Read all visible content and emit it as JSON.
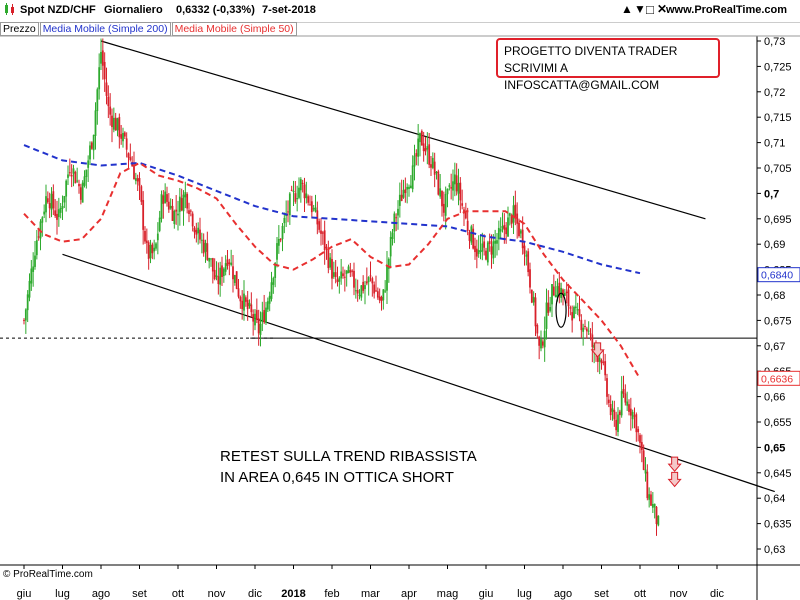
{
  "header": {
    "candle_icon": "candlestick-icon",
    "symbol": "Spot NZD/CHF",
    "period": "Giornaliero",
    "last": "0,6332 (-0,33%)",
    "date": "7-set-2018",
    "toolbar_icons": [
      "up-arrow-icon",
      "down-arrow-icon",
      "maximize-icon",
      "close-icon"
    ],
    "site": "www.ProRealTime.com"
  },
  "legend": {
    "price": "Prezzo",
    "ma200": "Media Mobile (Simple 200)",
    "ma50": "Media Mobile (Simple 50)"
  },
  "annotation_box": {
    "line1": "PROGETTO DIVENTA TRADER",
    "line2": "SCRIVIMI A INFOSCATTA@GMAIL.COM"
  },
  "note": {
    "line1": "RETEST SULLA TREND RIBASSISTA",
    "line2": "IN AREA 0,645 IN OTTICA SHORT"
  },
  "footer": "© ProRealTime.com",
  "colors": {
    "up": "#2eaa2e",
    "down": "#d8202a",
    "ma200": "#2233cc",
    "ma50": "#e83030",
    "box_border": "#e0202a"
  },
  "chart_data": {
    "type": "candlestick",
    "x_axis": {
      "labels": [
        "giu",
        "lug",
        "ago",
        "set",
        "ott",
        "nov",
        "dic",
        "2018",
        "feb",
        "mar",
        "apr",
        "mag",
        "giu",
        "lug",
        "ago",
        "set",
        "ott",
        "nov",
        "dic"
      ],
      "label_months": [
        0,
        1,
        2,
        3,
        4,
        5,
        6,
        7,
        8,
        9,
        10,
        11,
        12,
        13,
        14,
        15,
        16,
        17,
        18
      ],
      "note": "months counted from June 2017"
    },
    "y_axis": {
      "ticks": [
        "0,73",
        "0,725",
        "0,72",
        "0,715",
        "0,71",
        "0,705",
        "0,7",
        "0,695",
        "0,69",
        "0,685",
        "0,68",
        "0,675",
        "0,67",
        "0,665",
        "0,66",
        "0,655",
        "0,65",
        "0,645",
        "0,64",
        "0,635",
        "0,63"
      ],
      "tick_values": [
        0.73,
        0.725,
        0.72,
        0.715,
        0.71,
        0.705,
        0.7,
        0.695,
        0.69,
        0.685,
        0.68,
        0.675,
        0.67,
        0.665,
        0.66,
        0.655,
        0.65,
        0.645,
        0.64,
        0.635,
        0.63
      ],
      "bold_ticks": [
        "0,7",
        "0,65"
      ],
      "range": [
        0.6265,
        0.7325
      ],
      "price_labels": [
        {
          "text": "0,6840",
          "value": 0.684,
          "color": "#2233cc"
        },
        {
          "text": "0,6636",
          "value": 0.6636,
          "color": "#e83030"
        }
      ]
    },
    "price_path": [
      [
        0.0,
        0.675
      ],
      [
        0.3,
        0.69
      ],
      [
        0.6,
        0.7
      ],
      [
        0.9,
        0.695
      ],
      [
        1.2,
        0.706
      ],
      [
        1.5,
        0.7
      ],
      [
        1.8,
        0.712
      ],
      [
        2.0,
        0.728
      ],
      [
        2.2,
        0.716
      ],
      [
        2.5,
        0.712
      ],
      [
        2.8,
        0.706
      ],
      [
        3.0,
        0.7
      ],
      [
        3.2,
        0.688
      ],
      [
        3.4,
        0.688
      ],
      [
        3.6,
        0.7
      ],
      [
        3.9,
        0.696
      ],
      [
        4.2,
        0.7
      ],
      [
        4.5,
        0.692
      ],
      [
        4.8,
        0.688
      ],
      [
        5.0,
        0.682
      ],
      [
        5.3,
        0.688
      ],
      [
        5.6,
        0.68
      ],
      [
        5.9,
        0.676
      ],
      [
        6.1,
        0.673
      ],
      [
        6.3,
        0.678
      ],
      [
        6.6,
        0.69
      ],
      [
        6.9,
        0.698
      ],
      [
        7.2,
        0.702
      ],
      [
        7.5,
        0.697
      ],
      [
        7.8,
        0.69
      ],
      [
        8.1,
        0.682
      ],
      [
        8.4,
        0.684
      ],
      [
        8.7,
        0.681
      ],
      [
        9.0,
        0.683
      ],
      [
        9.3,
        0.678
      ],
      [
        9.6,
        0.694
      ],
      [
        9.9,
        0.702
      ],
      [
        10.1,
        0.704
      ],
      [
        10.3,
        0.711
      ],
      [
        10.6,
        0.706
      ],
      [
        10.9,
        0.697
      ],
      [
        11.2,
        0.703
      ],
      [
        11.5,
        0.694
      ],
      [
        11.8,
        0.688
      ],
      [
        12.1,
        0.689
      ],
      [
        12.4,
        0.692
      ],
      [
        12.7,
        0.696
      ],
      [
        13.0,
        0.69
      ],
      [
        13.2,
        0.68
      ],
      [
        13.4,
        0.668
      ],
      [
        13.6,
        0.678
      ],
      [
        13.8,
        0.682
      ],
      [
        14.1,
        0.679
      ],
      [
        14.3,
        0.676
      ],
      [
        14.6,
        0.674
      ],
      [
        14.8,
        0.669
      ],
      [
        15.0,
        0.668
      ],
      [
        15.1,
        0.662
      ],
      [
        15.2,
        0.658
      ],
      [
        15.35,
        0.654
      ],
      [
        15.55,
        0.66
      ],
      [
        15.75,
        0.658
      ],
      [
        15.9,
        0.655
      ],
      [
        16.05,
        0.648
      ],
      [
        16.2,
        0.641
      ],
      [
        16.35,
        0.638
      ],
      [
        16.5,
        0.634
      ]
    ],
    "ma200": [
      [
        0,
        0.7095
      ],
      [
        1,
        0.7065
      ],
      [
        2,
        0.7055
      ],
      [
        3,
        0.706
      ],
      [
        4,
        0.7035
      ],
      [
        5,
        0.7005
      ],
      [
        6,
        0.6975
      ],
      [
        7,
        0.6955
      ],
      [
        8,
        0.695
      ],
      [
        9,
        0.6945
      ],
      [
        10,
        0.694
      ],
      [
        11,
        0.6935
      ],
      [
        12,
        0.6915
      ],
      [
        13,
        0.6905
      ],
      [
        14,
        0.6885
      ],
      [
        15,
        0.686
      ],
      [
        16,
        0.6843
      ]
    ],
    "ma50": [
      [
        0,
        0.696
      ],
      [
        0.5,
        0.692
      ],
      [
        1,
        0.6905
      ],
      [
        1.5,
        0.691
      ],
      [
        2,
        0.695
      ],
      [
        2.5,
        0.704
      ],
      [
        3,
        0.706
      ],
      [
        3.5,
        0.7035
      ],
      [
        4,
        0.7025
      ],
      [
        4.5,
        0.701
      ],
      [
        5,
        0.699
      ],
      [
        5.5,
        0.694
      ],
      [
        6,
        0.6895
      ],
      [
        6.5,
        0.686
      ],
      [
        7,
        0.685
      ],
      [
        7.5,
        0.687
      ],
      [
        8,
        0.6895
      ],
      [
        8.5,
        0.691
      ],
      [
        9,
        0.6875
      ],
      [
        9.5,
        0.6855
      ],
      [
        10,
        0.686
      ],
      [
        10.5,
        0.69
      ],
      [
        11,
        0.695
      ],
      [
        11.5,
        0.6965
      ],
      [
        12,
        0.6965
      ],
      [
        12.5,
        0.6965
      ],
      [
        13,
        0.694
      ],
      [
        13.5,
        0.688
      ],
      [
        14,
        0.683
      ],
      [
        14.5,
        0.679
      ],
      [
        15,
        0.675
      ],
      [
        15.5,
        0.67
      ],
      [
        16,
        0.6635
      ]
    ],
    "trendlines": [
      {
        "name": "upper-downtrend-line",
        "from": [
          2.0,
          0.73
        ],
        "to": [
          17.7,
          0.695
        ]
      },
      {
        "name": "lower-downtrend-line",
        "from": [
          1.0,
          0.688
        ],
        "to": [
          19.5,
          0.6413
        ]
      }
    ],
    "horizontal_lines": [
      {
        "name": "support-dashed-line",
        "value": 0.6715,
        "from": 0,
        "to": 6.5,
        "style": "dashed"
      },
      {
        "name": "support-solid-line",
        "value": 0.6715,
        "from": 6.5,
        "to": 19.5,
        "style": "solid"
      }
    ],
    "down_arrows": [
      {
        "month": 14.9,
        "value": 0.669
      },
      {
        "month": 16.9,
        "value": 0.6465
      },
      {
        "month": 16.9,
        "value": 0.6435
      }
    ],
    "circle": {
      "month": 13.95,
      "value": 0.677
    },
    "grid": false
  }
}
